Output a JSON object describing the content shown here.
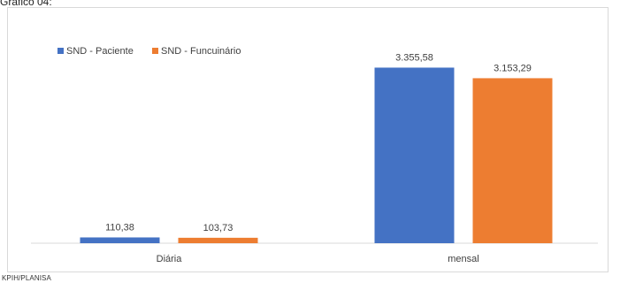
{
  "page": {
    "caption": "Gráfico 04:",
    "source": "KPIH/PLANISA"
  },
  "colors": {
    "series_1": "#4472C4",
    "series_2": "#ED7D31",
    "axis": "#d9d9d9",
    "text": "#404040"
  },
  "chart_data": {
    "type": "bar",
    "categories": [
      "Diária",
      "mensal"
    ],
    "series": [
      {
        "name": "SND - Paciente",
        "values": [
          110.38,
          3355.58
        ],
        "labels": [
          "110,38",
          "3.355,58"
        ],
        "color": "#4472C4"
      },
      {
        "name": "SND - Funcuinário",
        "values": [
          103.73,
          3153.29
        ],
        "labels": [
          "103,73",
          "3.153,29"
        ],
        "color": "#ED7D31"
      }
    ],
    "ylim": [
      0,
      3600
    ],
    "grid": false,
    "legend_position": "top-left",
    "title": "",
    "xlabel": "",
    "ylabel": ""
  }
}
